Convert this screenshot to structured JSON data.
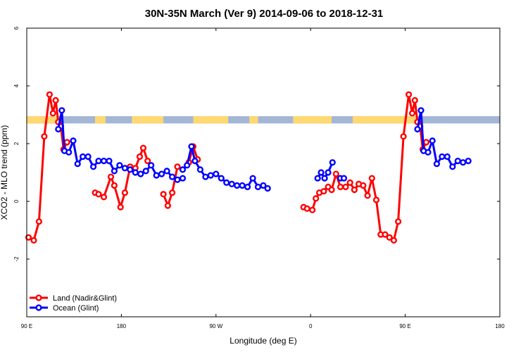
{
  "chart_data": {
    "type": "line",
    "title": "30N-35N March (Ver 9)   2014-09-06 to 2018-12-31",
    "xlabel": "Longitude (deg E)",
    "ylabel": "XCO2 - MLO trend (ppm)",
    "xlim": [
      -90,
      180
    ],
    "ylim": [
      -4,
      6
    ],
    "x_ticks": [
      {
        "value": -90,
        "label": "90 E"
      },
      {
        "value": -36,
        "label": "180"
      },
      {
        "value": 18,
        "label": "90 W"
      },
      {
        "value": 72,
        "label": "0"
      },
      {
        "value": 126,
        "label": "90 E"
      },
      {
        "value": 180,
        "label": "180"
      }
    ],
    "y_ticks": [
      {
        "value": -2,
        "label": "-2"
      },
      {
        "value": 0,
        "label": "0"
      },
      {
        "value": 2,
        "label": "2"
      },
      {
        "value": 4,
        "label": "4"
      },
      {
        "value": 6,
        "label": "6"
      }
    ],
    "legend_position": "bottom-left",
    "series": [
      {
        "name": "Land (Nadir&Glint)",
        "color": "#ff0000",
        "segments": [
          [
            [
              -89,
              -1.25
            ],
            [
              -86,
              -1.35
            ],
            [
              -83,
              -0.7
            ],
            [
              -80,
              2.25
            ],
            [
              -77,
              3.7
            ],
            [
              -75,
              3.05
            ],
            [
              -73.5,
              3.5
            ],
            [
              -72,
              2.75
            ],
            [
              -70.5,
              2.6
            ],
            [
              -69,
              1.8
            ],
            [
              -67,
              2.05
            ]
          ],
          [
            [
              -51,
              0.3
            ],
            [
              -49,
              0.25
            ],
            [
              -46,
              0.15
            ],
            [
              -42,
              0.85
            ],
            [
              -40,
              0.55
            ],
            [
              -36.5,
              -0.2
            ],
            [
              -34,
              0.3
            ],
            [
              -31,
              1.2
            ],
            [
              -28,
              1.15
            ],
            [
              -25.5,
              1.55
            ],
            [
              -23.5,
              1.85
            ],
            [
              -21,
              1.4
            ]
          ],
          [
            [
              -12,
              0.25
            ],
            [
              -9.5,
              -0.15
            ],
            [
              -7,
              0.3
            ],
            [
              -4,
              1.2
            ],
            [
              -1,
              1.1
            ],
            [
              2.5,
              1.35
            ],
            [
              5,
              1.9
            ],
            [
              7.5,
              1.45
            ]
          ],
          [
            [
              68,
              -0.2
            ],
            [
              70,
              -0.25
            ],
            [
              73,
              -0.3
            ],
            [
              75,
              0.1
            ],
            [
              77,
              0.3
            ],
            [
              79.5,
              0.35
            ],
            [
              82,
              0.5
            ],
            [
              84,
              0.4
            ],
            [
              86.5,
              0.95
            ],
            [
              89,
              0.5
            ],
            [
              92,
              0.5
            ],
            [
              94.5,
              0.65
            ],
            [
              97,
              0.4
            ],
            [
              99.5,
              0.6
            ],
            [
              102,
              0.55
            ],
            [
              104.5,
              0.2
            ],
            [
              107,
              0.8
            ],
            [
              109.5,
              0.05
            ],
            [
              112,
              -1.15
            ],
            [
              114.5,
              -1.15
            ],
            [
              117,
              -1.25
            ],
            [
              119.5,
              -1.35
            ],
            [
              122,
              -0.7
            ],
            [
              125,
              2.25
            ],
            [
              128,
              3.7
            ],
            [
              130,
              3.05
            ],
            [
              131.5,
              3.5
            ],
            [
              133,
              2.75
            ],
            [
              134.5,
              2.6
            ],
            [
              136,
              1.8
            ],
            [
              138,
              2.05
            ]
          ]
        ]
      },
      {
        "name": "Ocean (Glint)",
        "color": "#0000ff",
        "segments": [
          [
            [
              -72,
              2.5
            ],
            [
              -70,
              3.15
            ],
            [
              -68.5,
              1.75
            ],
            [
              -66,
              1.7
            ],
            [
              -63.5,
              2.1
            ],
            [
              -61,
              1.3
            ],
            [
              -58,
              1.55
            ],
            [
              -55,
              1.55
            ],
            [
              -52,
              1.2
            ],
            [
              -49,
              1.4
            ],
            [
              -46,
              1.4
            ],
            [
              -43,
              1.4
            ],
            [
              -40,
              1.05
            ],
            [
              -37,
              1.25
            ],
            [
              -34,
              1.15
            ],
            [
              -31,
              1.1
            ],
            [
              -28,
              1.0
            ],
            [
              -25,
              0.95
            ],
            [
              -22,
              1.05
            ],
            [
              -19,
              1.25
            ],
            [
              -16,
              0.9
            ],
            [
              -13,
              0.95
            ],
            [
              -10,
              1.05
            ],
            [
              -7,
              0.85
            ],
            [
              -4,
              0.75
            ],
            [
              -1,
              0.8
            ]
          ],
          [
            [
              -1,
              1.1
            ],
            [
              1.5,
              1.25
            ],
            [
              4,
              1.9
            ],
            [
              6,
              1.4
            ],
            [
              9,
              1.1
            ],
            [
              12,
              0.85
            ],
            [
              15,
              0.9
            ],
            [
              18,
              0.95
            ],
            [
              21,
              0.8
            ],
            [
              24,
              0.65
            ],
            [
              27,
              0.6
            ],
            [
              30,
              0.55
            ],
            [
              33,
              0.55
            ],
            [
              36,
              0.5
            ],
            [
              39,
              0.8
            ],
            [
              42,
              0.5
            ],
            [
              45,
              0.55
            ],
            [
              47.5,
              0.45
            ]
          ],
          [
            [
              76,
              0.8
            ],
            [
              78,
              1.0
            ],
            [
              80,
              0.8
            ],
            [
              82,
              1.0
            ],
            [
              84.5,
              1.35
            ]
          ],
          [
            [
              89,
              0.8
            ],
            [
              91,
              0.8
            ]
          ],
          [
            [
              133,
              2.5
            ],
            [
              135,
              3.15
            ],
            [
              136.5,
              1.75
            ],
            [
              139,
              1.7
            ],
            [
              141.5,
              2.1
            ],
            [
              144,
              1.3
            ],
            [
              147,
              1.55
            ],
            [
              150,
              1.55
            ],
            [
              153,
              1.2
            ],
            [
              156,
              1.4
            ],
            [
              159,
              1.35
            ],
            [
              162,
              1.4
            ]
          ]
        ]
      }
    ],
    "background_band": {
      "y_range": [
        2.7,
        2.95
      ],
      "land_color": "#ffd870",
      "ocean_color": "#a4b6d6",
      "land_ranges": [
        [
          -90,
          -72
        ],
        [
          -51,
          -45
        ],
        [
          -30,
          -12
        ],
        [
          5,
          25
        ],
        [
          37,
          42
        ],
        [
          62,
          84
        ],
        [
          96,
          133
        ]
      ]
    }
  }
}
